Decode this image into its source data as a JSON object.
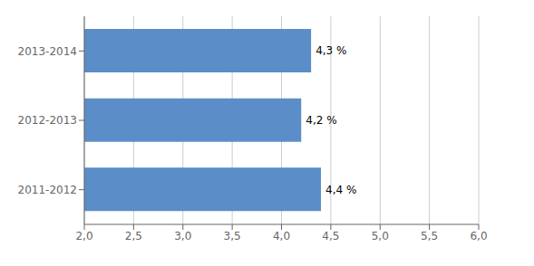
{
  "chart_data": {
    "type": "bar",
    "orientation": "horizontal",
    "categories": [
      "2011-2012",
      "2012-2013",
      "2013-2014"
    ],
    "values": [
      4.4,
      4.2,
      4.3
    ],
    "value_labels": [
      "4,4 %",
      "4,2 %",
      "4,3 %"
    ],
    "data_labels": true,
    "color": "#5b8dc8",
    "xlim": [
      2.0,
      6.0
    ],
    "xticks": [
      {
        "value": 2.0,
        "label": "2,0"
      },
      {
        "value": 2.5,
        "label": "2,5"
      },
      {
        "value": 3.0,
        "label": "3,0"
      },
      {
        "value": 3.5,
        "label": "3,5"
      },
      {
        "value": 4.0,
        "label": "4,0"
      },
      {
        "value": 4.5,
        "label": "4,5"
      },
      {
        "value": 5.0,
        "label": "5,0"
      },
      {
        "value": 5.5,
        "label": "5,5"
      },
      {
        "value": 6.0,
        "label": "6,0"
      }
    ],
    "grid": true
  }
}
